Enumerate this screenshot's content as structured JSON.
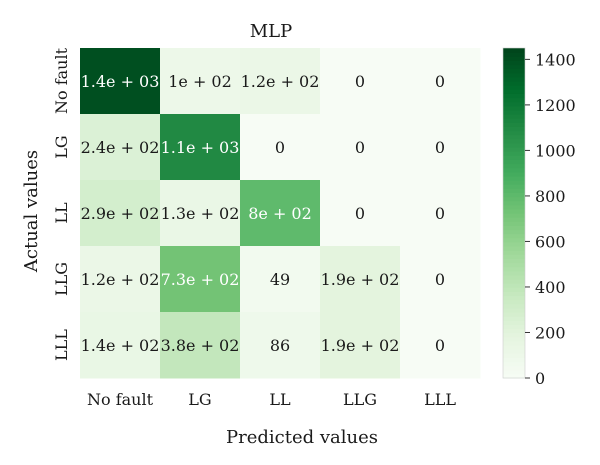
{
  "chart_data": {
    "type": "heatmap",
    "title": "MLP",
    "xlabel": "Predicted values",
    "ylabel": "Actual values",
    "x_categories": [
      "No fault",
      "LG",
      "LL",
      "LLG",
      "LLL"
    ],
    "y_categories": [
      "No fault",
      "LG",
      "LL",
      "LLG",
      "LLL"
    ],
    "values": [
      [
        1400,
        100,
        120,
        0,
        0
      ],
      [
        240,
        1100,
        0,
        0,
        0
      ],
      [
        290,
        130,
        800,
        0,
        0
      ],
      [
        120,
        730,
        49,
        190,
        0
      ],
      [
        140,
        380,
        86,
        190,
        0
      ]
    ],
    "cell_labels": [
      [
        "1.4e + 03",
        "1e + 02",
        "1.2e + 02",
        "0",
        "0"
      ],
      [
        "2.4e + 02",
        "1.1e + 03",
        "0",
        "0",
        "0"
      ],
      [
        "2.9e + 02",
        "1.3e + 02",
        "8e + 02",
        "0",
        "0"
      ],
      [
        "1.2e + 02",
        "7.3e + 02",
        "49",
        "1.9e + 02",
        "0"
      ],
      [
        "1.4e + 02",
        "3.8e + 02",
        "86",
        "1.9e + 02",
        "0"
      ]
    ],
    "colorbar": {
      "range": [
        0,
        1450
      ],
      "ticks": [
        0,
        200,
        400,
        600,
        800,
        1000,
        1200,
        1400
      ],
      "tick_labels": [
        "0",
        "200",
        "400",
        "600",
        "800",
        "1000",
        "1200",
        "1400"
      ],
      "colormap": "Greens",
      "color_low": "#f7fcf5",
      "color_high": "#00441b"
    }
  }
}
